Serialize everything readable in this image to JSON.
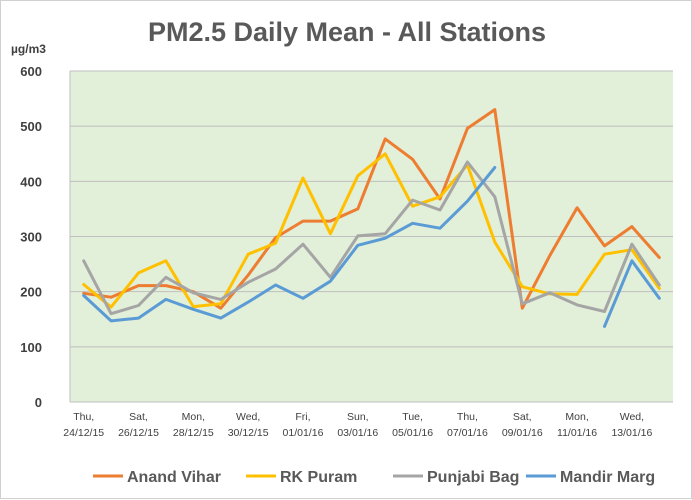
{
  "chart_data": {
    "type": "line",
    "title": "PM2.5 Daily Mean - All Stations",
    "ylabel": "µg/m3",
    "ylim": [
      0,
      600
    ],
    "yticks": [
      0,
      100,
      200,
      300,
      400,
      500,
      600
    ],
    "plot_background": "#e2efd9",
    "grid": true,
    "legend_position": "bottom",
    "x_tick_labels": [
      [
        "Thu,",
        "24/12/15"
      ],
      [
        "Sat,",
        "26/12/15"
      ],
      [
        "Mon,",
        "28/12/15"
      ],
      [
        "Wed,",
        "30/12/15"
      ],
      [
        "Fri,",
        "01/01/16"
      ],
      [
        "Sun,",
        "03/01/16"
      ],
      [
        "Tue,",
        "05/01/16"
      ],
      [
        "Thu,",
        "07/01/16"
      ],
      [
        "Sat,",
        "09/01/16"
      ],
      [
        "Mon,",
        "11/01/16"
      ],
      [
        "Wed,",
        "13/01/16"
      ]
    ],
    "x": [
      "24/12/15",
      "25/12/15",
      "26/12/15",
      "27/12/15",
      "28/12/15",
      "29/12/15",
      "30/12/15",
      "31/12/15",
      "01/01/16",
      "02/01/16",
      "03/01/16",
      "04/01/16",
      "05/01/16",
      "06/01/16",
      "07/01/16",
      "08/01/16",
      "09/01/16",
      "10/01/16",
      "11/01/16",
      "12/01/16",
      "13/01/16",
      "14/01/16"
    ],
    "series": [
      {
        "name": "Anand Vihar",
        "color": "#ed7d31",
        "values": [
          197,
          190,
          211,
          211,
          200,
          170,
          230,
          298,
          328,
          328,
          350,
          477,
          440,
          368,
          496,
          530,
          170,
          265,
          352,
          283,
          318,
          262
        ]
      },
      {
        "name": "RK Puram",
        "color": "#ffc000",
        "values": [
          213,
          172,
          234,
          256,
          173,
          178,
          268,
          288,
          406,
          305,
          410,
          450,
          355,
          372,
          430,
          290,
          209,
          196,
          195,
          268,
          276,
          206
        ]
      },
      {
        "name": "Punjabi Bag",
        "color": "#a5a5a5",
        "values": [
          256,
          160,
          175,
          226,
          198,
          186,
          217,
          241,
          286,
          226,
          301,
          305,
          366,
          348,
          435,
          372,
          178,
          198,
          176,
          164,
          286,
          212
        ]
      },
      {
        "name": "Mandir Marg",
        "color": "#5b9bd5",
        "values": [
          193,
          147,
          152,
          186,
          168,
          152,
          181,
          212,
          188,
          219,
          284,
          297,
          324,
          315,
          364,
          425,
          null,
          null,
          null,
          137,
          256,
          188
        ]
      }
    ]
  }
}
